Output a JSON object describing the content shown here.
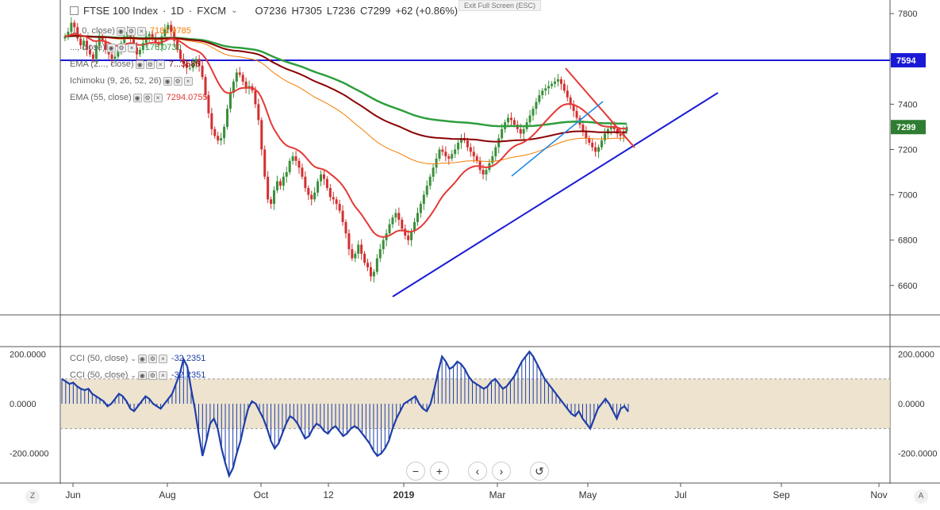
{
  "header": {
    "symbol": "FTSE 100 Index",
    "interval": "1D",
    "source": "FXCM",
    "open": "O7236",
    "high": "H7305",
    "low": "L7236",
    "close": "C7299",
    "change": "+62 (+0.86%)",
    "exit_fullscreen": "Exit Full Screen (ESC)"
  },
  "legend": [
    {
      "label": "..., 0, close)",
      "value": "7181.9785",
      "color": "#f57c00"
    },
    {
      "label": "..., close)",
      "value": "7176.0730",
      "color": "#2e9e3e"
    },
    {
      "label": "EMA (2..., close)",
      "value": "7...3586",
      "color": "#8b0000"
    },
    {
      "label": "Ichimoku (9, 26, 52, 26)",
      "value": "",
      "color": "#1e88e5"
    },
    {
      "label": "EMA (55, close)",
      "value": "7294.0755",
      "color": "#e53935"
    }
  ],
  "cci_legend": [
    {
      "label": "CCI (50, close)",
      "value": "-32.2351",
      "color": "#1e3ea8"
    },
    {
      "label": "CCI (50, close)",
      "value": "-32.2351",
      "color": "#1e3ea8"
    }
  ],
  "nav": {
    "zoom_out": "−",
    "zoom_in": "+",
    "back": "‹",
    "forward": "›",
    "reset": "↺"
  },
  "corners": {
    "left": "Z",
    "right": "A"
  },
  "chart_data": [
    {
      "type": "candlestick",
      "title": "FTSE 100 Index · 1D · FXCM",
      "x_ticks": [
        "Jun",
        "Aug",
        "Oct",
        "12",
        "2019",
        "Mar",
        "May",
        "Jul",
        "Sep",
        "Nov"
      ],
      "y_ticks": [
        "7800",
        "7600",
        "7400",
        "7200",
        "7000",
        "6800",
        "6600"
      ],
      "ylim": [
        6470,
        7860
      ],
      "price_labels": [
        {
          "value": 7594,
          "text": "7594",
          "color": "#1a1ad6"
        },
        {
          "value": 7299,
          "text": "7299",
          "color": "#2e7d32"
        }
      ],
      "closes": [
        7700,
        7720,
        7760,
        7740,
        7690,
        7660,
        7680,
        7640,
        7620,
        7600,
        7660,
        7700,
        7680,
        7640,
        7620,
        7600,
        7610,
        7640,
        7670,
        7700,
        7720,
        7690,
        7650,
        7620,
        7640,
        7670,
        7700,
        7710,
        7690,
        7670,
        7660,
        7700,
        7730,
        7750,
        7720,
        7680,
        7640,
        7600,
        7580,
        7560,
        7560,
        7580,
        7600,
        7570,
        7520,
        7440,
        7360,
        7290,
        7260,
        7240,
        7250,
        7300,
        7380,
        7450,
        7500,
        7540,
        7530,
        7500,
        7470,
        7480,
        7460,
        7400,
        7330,
        7200,
        7080,
        6980,
        6960,
        7020,
        7060,
        7040,
        7080,
        7100,
        7150,
        7170,
        7150,
        7120,
        7080,
        7030,
        7000,
        6980,
        7010,
        7060,
        7090,
        7070,
        7030,
        6990,
        6980,
        6960,
        6930,
        6880,
        6830,
        6760,
        6720,
        6740,
        6780,
        6740,
        6700,
        6680,
        6640,
        6660,
        6720,
        6760,
        6800,
        6830,
        6870,
        6900,
        6920,
        6890,
        6850,
        6820,
        6800,
        6840,
        6880,
        6920,
        6960,
        7000,
        7040,
        7080,
        7120,
        7160,
        7200,
        7190,
        7170,
        7160,
        7180,
        7200,
        7230,
        7250,
        7240,
        7210,
        7190,
        7170,
        7150,
        7110,
        7090,
        7110,
        7140,
        7170,
        7210,
        7250,
        7290,
        7320,
        7340,
        7330,
        7310,
        7290,
        7270,
        7290,
        7320,
        7350,
        7380,
        7410,
        7440,
        7460,
        7470,
        7480,
        7490,
        7500,
        7510,
        7490,
        7460,
        7430,
        7400,
        7370,
        7340,
        7310,
        7280,
        7250,
        7230,
        7210,
        7190,
        7210,
        7240,
        7270,
        7290,
        7300,
        7290,
        7270,
        7260,
        7280,
        7299
      ],
      "overlays": [
        {
          "name": "EMA",
          "color": "#f57c00"
        },
        {
          "name": "EMA",
          "color": "#2e9e3e"
        },
        {
          "name": "EMA",
          "color": "#8b0000"
        },
        {
          "name": "EMA (55, close)",
          "color": "#e53935"
        }
      ],
      "horizontal_line": {
        "value": 7594,
        "color": "#1a1ad6"
      }
    },
    {
      "type": "line",
      "title": "CCI (50, close)",
      "y_ticks": [
        "200.0000",
        "0.0000",
        "-200.0000"
      ],
      "ylim": [
        -300,
        230
      ],
      "band": [
        -100,
        100
      ],
      "values": [
        100,
        90,
        80,
        85,
        70,
        60,
        55,
        60,
        40,
        30,
        20,
        10,
        -10,
        0,
        20,
        40,
        30,
        10,
        -20,
        -30,
        -10,
        10,
        30,
        20,
        0,
        -10,
        -20,
        0,
        20,
        40,
        80,
        120,
        180,
        150,
        60,
        -20,
        -120,
        -210,
        -150,
        -80,
        -60,
        -100,
        -180,
        -240,
        -290,
        -260,
        -200,
        -150,
        -80,
        -20,
        10,
        0,
        -30,
        -60,
        -100,
        -150,
        -180,
        -160,
        -120,
        -80,
        -50,
        -60,
        -80,
        -110,
        -140,
        -130,
        -100,
        -80,
        -90,
        -110,
        -120,
        -100,
        -90,
        -110,
        -130,
        -120,
        -100,
        -90,
        -100,
        -120,
        -140,
        -160,
        -190,
        -210,
        -200,
        -180,
        -150,
        -100,
        -60,
        -30,
        0,
        10,
        20,
        30,
        0,
        -20,
        -30,
        0,
        60,
        130,
        190,
        170,
        140,
        150,
        170,
        160,
        140,
        110,
        90,
        80,
        70,
        60,
        70,
        90,
        100,
        80,
        60,
        70,
        90,
        110,
        140,
        170,
        190,
        210,
        190,
        160,
        130,
        100,
        80,
        60,
        40,
        20,
        0,
        -20,
        -40,
        -50,
        -30,
        -60,
        -80,
        -100,
        -60,
        -20,
        0,
        20,
        0,
        -30,
        -60,
        -20,
        -10,
        -32
      ]
    }
  ]
}
